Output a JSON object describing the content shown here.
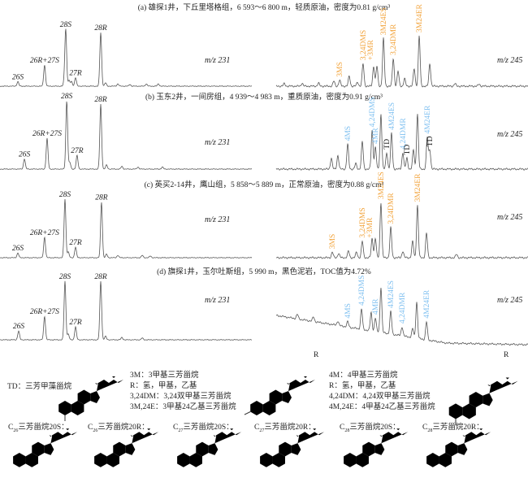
{
  "chart_data": [
    {
      "type": "line",
      "title": "(a) 雄探1井，下丘里塔格组，6 593～6 800 m，轻质原油，密度为0.81 g/cm³",
      "left": {
        "mz": "m/z 231",
        "peaks": [
          {
            "rt": 7.1,
            "i": 0.08,
            "label": "26S"
          },
          {
            "rt": 17.7,
            "i": 0.37,
            "label": "26R+27S"
          },
          {
            "rt": 25.5,
            "i": 0.06
          },
          {
            "rt": 26.1,
            "i": 1.0,
            "label": "28S"
          },
          {
            "rt": 27.4,
            "i": 0.1
          },
          {
            "rt": 28.4,
            "i": 0.08
          },
          {
            "rt": 30.0,
            "i": 0.15,
            "label": "27R"
          },
          {
            "rt": 40.0,
            "i": 0.94,
            "label": "28R"
          },
          {
            "rt": 41.9,
            "i": 0.06
          },
          {
            "rt": 46.8,
            "i": 0.04
          },
          {
            "rt": 51.6,
            "i": 0.03
          },
          {
            "rt": 58.1,
            "i": 0.04
          },
          {
            "rt": 62.9,
            "i": 0.04
          }
        ]
      },
      "right": {
        "mz": "m/z 245",
        "peaks": [
          {
            "rt": 3.2,
            "i": 0.05
          },
          {
            "rt": 10.3,
            "i": 0.06
          },
          {
            "rt": 16.8,
            "i": 0.06
          },
          {
            "rt": 22.9,
            "i": 0.1
          },
          {
            "rt": 25.2,
            "i": 0.12,
            "label": "3MS",
            "series": "3M"
          },
          {
            "rt": 29.0,
            "i": 0.2
          },
          {
            "rt": 32.3,
            "i": 0.08
          },
          {
            "rt": 34.5,
            "i": 0.45,
            "label": "3,24DMS",
            "label2": "+3MR",
            "series": "3M"
          },
          {
            "rt": 38.7,
            "i": 0.4
          },
          {
            "rt": 40.0,
            "i": 0.4
          },
          {
            "rt": 42.6,
            "i": 0.95,
            "label": "3M24ES",
            "series": "3M"
          },
          {
            "rt": 46.5,
            "i": 0.55,
            "label": "3,24DMR",
            "series": "3M"
          },
          {
            "rt": 48.4,
            "i": 0.3
          },
          {
            "rt": 51.0,
            "i": 0.15
          },
          {
            "rt": 54.8,
            "i": 0.35
          },
          {
            "rt": 56.8,
            "i": 1.0,
            "label": "3M24ER",
            "series": "3M"
          },
          {
            "rt": 61.0,
            "i": 0.45
          },
          {
            "rt": 71.0,
            "i": 0.05
          },
          {
            "rt": 80.6,
            "i": 0.04
          }
        ]
      }
    },
    {
      "type": "line",
      "title": "(b) 玉东2井，一间房组，4 939～4 983 m，重质原油，密度为0.91 g/cm³",
      "left": {
        "mz": "m/z 231",
        "peaks": [
          {
            "rt": 9.7,
            "i": 0.15,
            "label": "26S"
          },
          {
            "rt": 18.7,
            "i": 0.45,
            "label": "26R+27S"
          },
          {
            "rt": 26.5,
            "i": 1.0,
            "label": "28S"
          },
          {
            "rt": 27.7,
            "i": 0.1
          },
          {
            "rt": 30.6,
            "i": 0.2,
            "label": "27R"
          },
          {
            "rt": 40.0,
            "i": 0.95,
            "label": "28R"
          },
          {
            "rt": 42.3,
            "i": 0.06
          },
          {
            "rt": 48.4,
            "i": 0.04
          },
          {
            "rt": 54.8,
            "i": 0.03
          },
          {
            "rt": 64.5,
            "i": 0.03
          }
        ]
      },
      "right": {
        "mz": "m/z 245",
        "peaks": [
          {
            "rt": 21.9,
            "i": 0.2
          },
          {
            "rt": 24.5,
            "i": 0.25
          },
          {
            "rt": 28.4,
            "i": 0.45,
            "label": "4MS",
            "series": "4M"
          },
          {
            "rt": 31.6,
            "i": 0.1
          },
          {
            "rt": 34.2,
            "i": 0.5
          },
          {
            "rt": 38.1,
            "i": 0.7,
            "label": "4,24DMS",
            "series": "4M"
          },
          {
            "rt": 39.4,
            "i": 0.4,
            "label": "4MR",
            "series": "4M"
          },
          {
            "rt": 41.6,
            "i": 1.0
          },
          {
            "rt": 43.9,
            "i": 0.3,
            "label": "TD",
            "series": "TD"
          },
          {
            "rt": 45.8,
            "i": 0.65,
            "label": "4M24ES",
            "series": "4M"
          },
          {
            "rt": 50.3,
            "i": 0.3,
            "label": "4,24DMR",
            "series": "4M"
          },
          {
            "rt": 51.9,
            "i": 0.2,
            "label": "TD",
            "series": "TD"
          },
          {
            "rt": 54.5,
            "i": 0.35
          },
          {
            "rt": 56.1,
            "i": 1.0
          },
          {
            "rt": 60.0,
            "i": 0.58,
            "label": "4M24ER",
            "series": "4M"
          },
          {
            "rt": 61.0,
            "i": 0.35,
            "label": "TD",
            "series": "TD"
          }
        ]
      }
    },
    {
      "type": "line",
      "title": "(c) 英买2-14井，鹰山组，5 858～5 889 m，正常原油，密度为0.88 g/cm³",
      "left": {
        "mz": "m/z 231",
        "peaks": [
          {
            "rt": 7.1,
            "i": 0.08,
            "label": "26S"
          },
          {
            "rt": 17.7,
            "i": 0.35,
            "label": "26R+27S"
          },
          {
            "rt": 25.8,
            "i": 1.0,
            "label": "28S"
          },
          {
            "rt": 27.1,
            "i": 0.1
          },
          {
            "rt": 30.0,
            "i": 0.18,
            "label": "27R"
          },
          {
            "rt": 40.3,
            "i": 0.95,
            "label": "28R"
          },
          {
            "rt": 42.3,
            "i": 0.06
          },
          {
            "rt": 46.8,
            "i": 0.04
          },
          {
            "rt": 56.5,
            "i": 0.04
          },
          {
            "rt": 59.7,
            "i": 0.03
          }
        ]
      },
      "right": {
        "mz": "m/z 245",
        "peaks": [
          {
            "rt": 22.3,
            "i": 0.1,
            "label": "3MS",
            "series": "3M"
          },
          {
            "rt": 24.8,
            "i": 0.08
          },
          {
            "rt": 28.7,
            "i": 0.12
          },
          {
            "rt": 31.9,
            "i": 0.1
          },
          {
            "rt": 34.2,
            "i": 0.3,
            "label": "3,24DMS",
            "label2": "+3MR",
            "series": "3M"
          },
          {
            "rt": 38.1,
            "i": 0.35
          },
          {
            "rt": 39.4,
            "i": 0.35
          },
          {
            "rt": 41.6,
            "i": 1.0,
            "label": "3M24ES",
            "series": "3M"
          },
          {
            "rt": 45.5,
            "i": 0.55,
            "label": "3,24DMR",
            "series": "3M"
          },
          {
            "rt": 50.3,
            "i": 0.12
          },
          {
            "rt": 54.2,
            "i": 0.3
          },
          {
            "rt": 56.1,
            "i": 0.95,
            "label": "3M24ER",
            "series": "3M"
          },
          {
            "rt": 59.7,
            "i": 0.45
          },
          {
            "rt": 71.6,
            "i": 0.06
          }
        ]
      }
    },
    {
      "type": "line",
      "title": "(d) 旗探1井，玉尔吐斯组，5 990 m，黑色泥岩，TOC值为4.72%",
      "left": {
        "mz": "m/z 231",
        "peaks": [
          {
            "rt": 7.4,
            "i": 0.15,
            "label": "26S"
          },
          {
            "rt": 17.7,
            "i": 0.4,
            "label": "26R+27S"
          },
          {
            "rt": 25.8,
            "i": 1.0,
            "label": "28S"
          },
          {
            "rt": 27.1,
            "i": 0.1
          },
          {
            "rt": 30.0,
            "i": 0.22,
            "label": "27R"
          },
          {
            "rt": 40.0,
            "i": 1.0,
            "label": "28R"
          },
          {
            "rt": 41.9,
            "i": 0.06
          },
          {
            "rt": 48.4,
            "i": 0.04
          },
          {
            "rt": 56.5,
            "i": 0.03
          }
        ]
      },
      "right": {
        "mz": "m/z 245",
        "peaks": [
          {
            "rt": 8.4,
            "i": 0.1
          },
          {
            "rt": 14.8,
            "i": 0.1
          },
          {
            "rt": 24.5,
            "i": 0.1
          },
          {
            "rt": 28.4,
            "i": 0.12,
            "label": "4MS",
            "series": "4M"
          },
          {
            "rt": 33.9,
            "i": 0.45,
            "label": "4,24DMS",
            "series": "4M"
          },
          {
            "rt": 37.7,
            "i": 0.4
          },
          {
            "rt": 39.4,
            "i": 0.3,
            "label": "4MR",
            "series": "4M"
          },
          {
            "rt": 41.6,
            "i": 1.0
          },
          {
            "rt": 45.5,
            "i": 0.5,
            "label": "4M24ES",
            "series": "4M"
          },
          {
            "rt": 50.0,
            "i": 0.2,
            "label": "4,24DMR",
            "series": "4M"
          },
          {
            "rt": 54.2,
            "i": 0.2
          },
          {
            "rt": 55.8,
            "i": 0.8
          },
          {
            "rt": 59.7,
            "i": 0.4,
            "label": "4M24ER",
            "series": "4M"
          }
        ]
      }
    }
  ],
  "series_colors": {
    "3M": "#f2a33a",
    "4M": "#7dbff0",
    "TD": "#111111",
    "trace": "#555555"
  },
  "legend": {
    "td_label": "TD：三芳甲藻甾烷",
    "group_3m": [
      "3M：3甲基三芳甾烷",
      "R：氢，甲基，乙基",
      "3,24DM：3,24双甲基三芳甾烷",
      "3M,24E：3甲基24乙基三芳甾烷"
    ],
    "group_4m": [
      "4M：4甲基三芳甾烷",
      "R：氢，甲基，乙基",
      "4,24DM：4,24双甲基三芳甾烷",
      "4M,24E：4甲基24乙基三芳甾烷"
    ],
    "r_group": "R",
    "compounds": [
      {
        "c": "C",
        "n": "26",
        "rest": "三芳甾烷20S："
      },
      {
        "c": "C",
        "n": "26",
        "rest": "三芳甾烷20R："
      },
      {
        "c": "C",
        "n": "27",
        "rest": "三芳甾烷20S："
      },
      {
        "c": "C",
        "n": "27",
        "rest": "三芳甾烷20R："
      },
      {
        "c": "C",
        "n": "28",
        "rest": "三芳甾烷20S："
      },
      {
        "c": "C",
        "n": "28",
        "rest": "三芳甾烷20R："
      }
    ]
  }
}
